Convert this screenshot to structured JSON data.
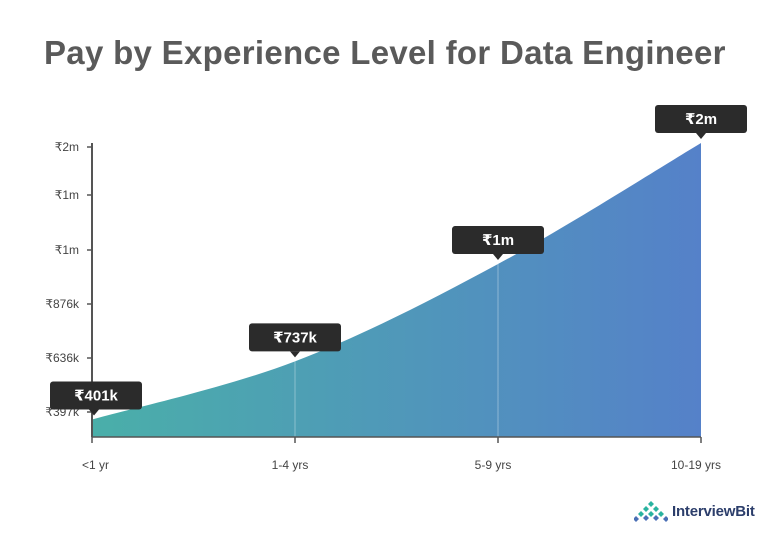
{
  "title": "Pay by Experience Level for Data Engineer",
  "brand": {
    "name": "InterviewBit",
    "icon": "interviewbit-logo-icon"
  },
  "colors": {
    "area_start": "#4aafa9",
    "area_end": "#5581c9",
    "tag_bg": "#2b2b2b",
    "axis": "#555555"
  },
  "chart_data": {
    "type": "area",
    "title": "Pay by Experience Level for Data Engineer",
    "xlabel": "",
    "ylabel": "",
    "categories": [
      "<1 yr",
      "1-4 yrs",
      "5-9 yrs",
      "10-19 yrs"
    ],
    "values": [
      401000,
      737000,
      1300000,
      2000000
    ],
    "value_labels": [
      "₹401k",
      "₹737k",
      "₹1m",
      "₹2m"
    ],
    "y_ticks": [
      "₹397k",
      "₹636k",
      "₹876k",
      "₹1m",
      "₹1m",
      "₹2m"
    ],
    "ylim": [
      300000,
      2000000
    ],
    "grid": false,
    "legend": "none"
  }
}
